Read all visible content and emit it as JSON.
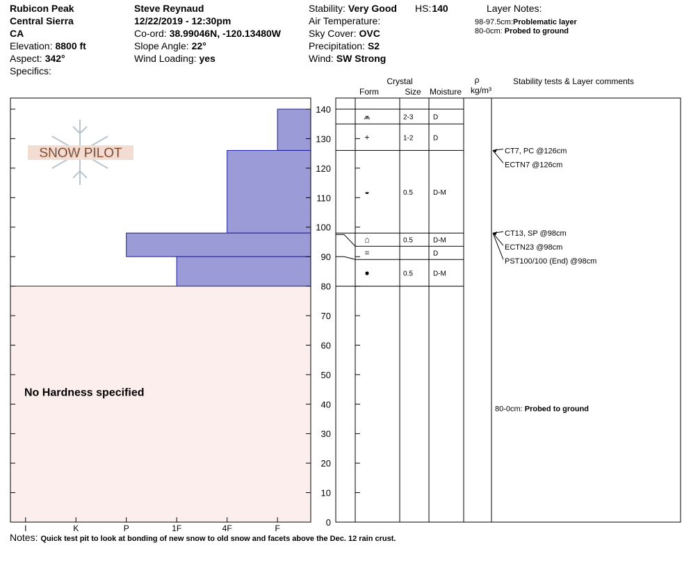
{
  "header": {
    "col1": [
      {
        "value": "Rubicon Peak"
      },
      {
        "value": "Central Sierra"
      },
      {
        "value": "CA"
      },
      {
        "label": "Elevation:",
        "value": "8800 ft"
      },
      {
        "label": "Aspect:",
        "value": "342°"
      },
      {
        "label": "Specifics:"
      }
    ],
    "col2": [
      {
        "value": "Steve Reynaud"
      },
      {
        "value": "12/22/2019 - 12:30pm"
      },
      {
        "label": "Co-ord:",
        "value": "38.99046N, -120.13480W"
      },
      {
        "label": "Slope Angle:",
        "value": "22°"
      },
      {
        "label": "Wind Loading:",
        "value": "yes"
      }
    ],
    "col3": [
      {
        "label": "Stability:",
        "value": "Very Good"
      },
      {
        "label": "Air Temperature:"
      },
      {
        "label": "Sky Cover:",
        "value": "OVC"
      },
      {
        "label": "Precipitation:",
        "value": "S2"
      },
      {
        "label": "Wind:",
        "value": "SW Strong"
      }
    ],
    "hs": {
      "label": "HS:",
      "value": 140
    },
    "layer_notes": {
      "title": "Layer Notes:",
      "items": [
        {
          "label": "98-97.5cm:",
          "value": "Problematic layer"
        },
        {
          "label": "80-0cm:",
          "value": "Probed to ground"
        }
      ]
    }
  },
  "logo": "SNOW PILOT",
  "chart_data": {
    "type": "snow-profile",
    "ylim": [
      0,
      140
    ],
    "yticks": [
      0,
      10,
      20,
      30,
      40,
      50,
      60,
      70,
      80,
      90,
      100,
      110,
      120,
      130,
      140
    ],
    "xlim": [
      0.7,
      6.66
    ],
    "xticks": [
      {
        "value": 1,
        "label": "I"
      },
      {
        "value": 2,
        "label": "K"
      },
      {
        "value": 3,
        "label": "P"
      },
      {
        "value": 4,
        "label": "1F"
      },
      {
        "value": 5,
        "label": "4F"
      },
      {
        "value": 6,
        "label": "F"
      }
    ],
    "hardness_color": "#9b9bd8",
    "hardness_layers": [
      {
        "top": 140,
        "bottom": 126,
        "hardness": 6
      },
      {
        "top": 126,
        "bottom": 98,
        "hardness": 5
      },
      {
        "top": 98,
        "bottom": 90,
        "hardness": 3
      },
      {
        "top": 90,
        "bottom": 80,
        "hardness": 4
      }
    ],
    "no_hardness": {
      "top": 80,
      "bottom": 0,
      "label": "No Hardness specified"
    },
    "columns": {
      "crystal": "Crystal",
      "form": "Form",
      "size": "Size",
      "moisture": "Moisture",
      "rho": "ρ",
      "density": "kg/m³",
      "comments": "Stability tests & Layer comments"
    },
    "layers": [
      {
        "top": 140,
        "bottom": 135,
        "form": "⩕",
        "size": "2-3",
        "moisture": "D"
      },
      {
        "top": 135,
        "bottom": 126,
        "form": "+",
        "size": "1-2",
        "moisture": "D"
      },
      {
        "top": 126,
        "bottom": 98,
        "form": "◒",
        "size": "0.5",
        "moisture": "D-M"
      },
      {
        "top": 98,
        "bottom": 97.5,
        "form": "⌂",
        "size": "0.5",
        "moisture": "D-M"
      },
      {
        "top": 97.5,
        "bottom": 90,
        "form": "=",
        "moisture": "D"
      },
      {
        "top": 90,
        "bottom": 80,
        "form": "●",
        "size": "0.5",
        "moisture": "D-M"
      }
    ],
    "tests": [
      {
        "label": "CT7, PC @126cm",
        "height": 126
      },
      {
        "label": "ECTN7 @126cm",
        "height": 126
      },
      {
        "label": "CT13, SP @98cm",
        "height": 98
      },
      {
        "label": "ECTN23 @98cm",
        "height": 98
      },
      {
        "label": "PST100/100 (End) @98cm",
        "height": 98
      }
    ],
    "comments": [
      {
        "label": "80-0cm:",
        "value": "Probed to ground",
        "top": 80,
        "bottom": 0
      }
    ]
  },
  "notes": {
    "label": "Notes:",
    "value": "Quick test pit to look at bonding of new snow to old snow and facets above the Dec. 12 rain crust."
  }
}
